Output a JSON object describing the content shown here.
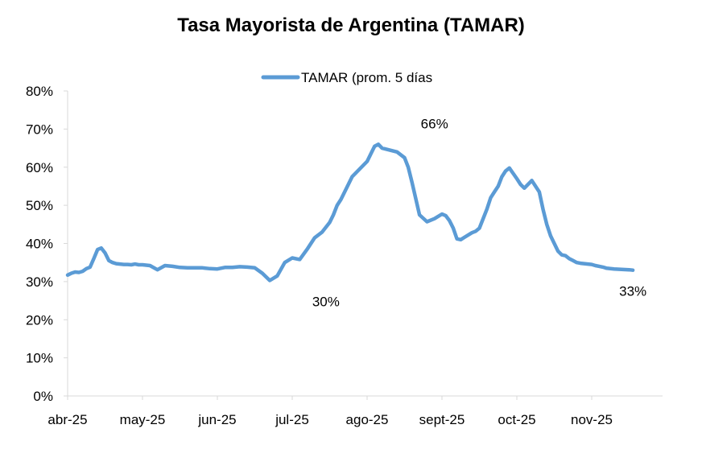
{
  "chart_data": {
    "type": "line",
    "title": "Tasa Mayorista de Argentina (TAMAR)",
    "xlabel": "",
    "ylabel": "",
    "ylim": [
      0,
      80
    ],
    "y_ticks": [
      "0%",
      "10%",
      "20%",
      "30%",
      "40%",
      "50%",
      "60%",
      "70%",
      "80%"
    ],
    "x_ticks": [
      "abr-25",
      "may-25",
      "jun-25",
      "jul-25",
      "ago-25",
      "sept-25",
      "oct-25",
      "nov-25"
    ],
    "legend_position": "top-center",
    "series": [
      {
        "name": "TAMAR (prom. 5 días",
        "color": "#5b9bd5",
        "x": [
          0,
          0.05,
          0.1,
          0.15,
          0.2,
          0.25,
          0.3,
          0.35,
          0.4,
          0.45,
          0.5,
          0.55,
          0.6,
          0.65,
          0.7,
          0.75,
          0.8,
          0.85,
          0.9,
          0.95,
          1.0,
          1.1,
          1.2,
          1.3,
          1.4,
          1.5,
          1.6,
          1.7,
          1.8,
          1.9,
          2.0,
          2.1,
          2.2,
          2.3,
          2.4,
          2.5,
          2.6,
          2.7,
          2.8,
          2.9,
          3.0,
          3.1,
          3.2,
          3.3,
          3.4,
          3.5,
          3.55,
          3.6,
          3.65,
          3.7,
          3.8,
          3.9,
          4.0,
          4.05,
          4.1,
          4.15,
          4.2,
          4.3,
          4.4,
          4.5,
          4.55,
          4.6,
          4.7,
          4.8,
          4.9,
          5.0,
          5.05,
          5.1,
          5.15,
          5.2,
          5.25,
          5.3,
          5.4,
          5.45,
          5.5,
          5.6,
          5.65,
          5.7,
          5.75,
          5.8,
          5.85,
          5.9,
          6.0,
          6.05,
          6.1,
          6.2,
          6.3,
          6.35,
          6.4,
          6.45,
          6.5,
          6.55,
          6.6,
          6.65,
          6.7,
          6.75,
          6.8,
          6.85,
          6.9,
          6.95,
          7.0,
          7.05,
          7.1,
          7.15,
          7.2,
          7.3,
          7.4,
          7.5,
          7.55
        ],
        "values": [
          31.7,
          32.2,
          32.5,
          32.4,
          32.7,
          33.4,
          33.8,
          36.0,
          38.4,
          38.8,
          37.5,
          35.5,
          35.0,
          34.7,
          34.6,
          34.5,
          34.5,
          34.4,
          34.6,
          34.4,
          34.4,
          34.2,
          33.1,
          34.2,
          34.0,
          33.7,
          33.6,
          33.6,
          33.6,
          33.4,
          33.3,
          33.7,
          33.7,
          33.9,
          33.8,
          33.6,
          32.2,
          30.3,
          31.5,
          35.0,
          36.2,
          35.8,
          38.5,
          41.5,
          43.0,
          45.5,
          47.5,
          50.0,
          51.5,
          53.5,
          57.5,
          59.5,
          61.5,
          63.5,
          65.5,
          66.0,
          65.0,
          64.5,
          64.0,
          62.5,
          60.0,
          56.0,
          47.5,
          45.7,
          46.5,
          47.7,
          47.3,
          46.0,
          44.0,
          41.2,
          41.0,
          41.6,
          42.8,
          43.2,
          44.0,
          49.0,
          52.0,
          53.5,
          55.0,
          57.5,
          59.0,
          59.8,
          57.0,
          55.5,
          54.5,
          56.5,
          53.5,
          49.0,
          45.0,
          42.0,
          40.0,
          38.0,
          37.0,
          36.8,
          36.0,
          35.5,
          35.0,
          34.8,
          34.7,
          34.6,
          34.5,
          34.2,
          34.0,
          33.8,
          33.5,
          33.3,
          33.2,
          33.1,
          33.0
        ]
      }
    ],
    "annotations": [
      {
        "text": "30%",
        "x": 3.45,
        "y": 30.3,
        "placement": "below"
      },
      {
        "text": "66%",
        "x": 4.9,
        "y": 66.0,
        "placement": "above"
      },
      {
        "text": "33%",
        "x": 7.55,
        "y": 33.0,
        "placement": "below"
      }
    ]
  }
}
